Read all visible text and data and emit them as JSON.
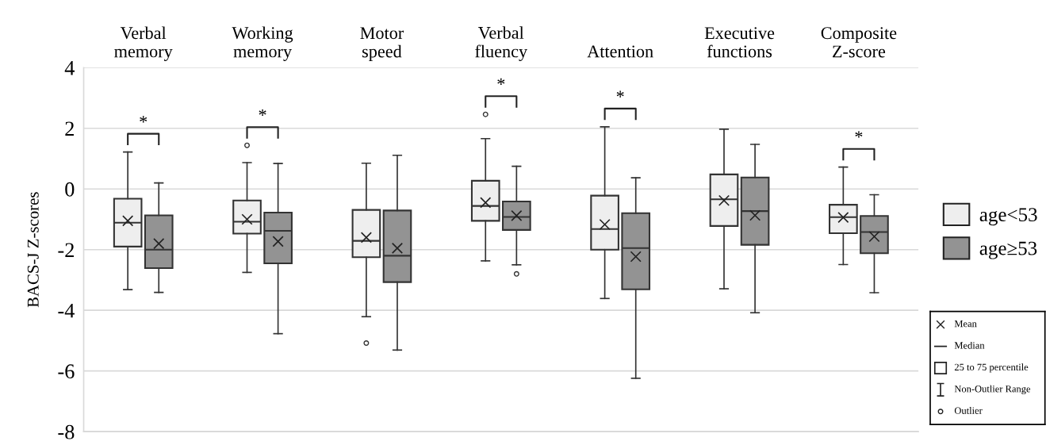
{
  "chart_data": {
    "type": "box",
    "categories": [
      "Verbal memory",
      "Working memory",
      "Motor speed",
      "Verbal fluency",
      "Attention",
      "Executive functions",
      "Composite Z-score"
    ],
    "ylabel": "BACS-J Z-scores",
    "ylim": [
      -8,
      4
    ],
    "yticks": [
      4,
      2,
      0,
      -2,
      -4,
      -6,
      -8
    ],
    "grid": "y",
    "legend": "right",
    "series": [
      {
        "name": "age<53",
        "color": "#eeeeee",
        "boxes": [
          {
            "low": -3.32,
            "q1": -1.9,
            "median": -1.11,
            "q3": -0.32,
            "high": 1.22,
            "mean": -1.05
          },
          {
            "low": -2.75,
            "q1": -1.47,
            "median": -1.08,
            "q3": -0.38,
            "high": 0.87,
            "mean": -1.0,
            "outliers": [
              1.44
            ]
          },
          {
            "low": -4.21,
            "q1": -2.25,
            "median": -1.71,
            "q3": -0.69,
            "high": 0.85,
            "mean": -1.6,
            "outliers": [
              -5.08
            ]
          },
          {
            "low": -2.37,
            "q1": -1.05,
            "median": -0.56,
            "q3": 0.27,
            "high": 1.66,
            "mean": -0.45,
            "outliers": [
              2.46
            ]
          },
          {
            "low": -3.61,
            "q1": -2.0,
            "median": -1.32,
            "q3": -0.22,
            "high": 2.05,
            "mean": -1.17
          },
          {
            "low": -3.29,
            "q1": -1.22,
            "median": -0.34,
            "q3": 0.48,
            "high": 1.97,
            "mean": -0.38
          },
          {
            "low": -2.49,
            "q1": -1.46,
            "median": -0.93,
            "q3": -0.52,
            "high": 0.72,
            "mean": -0.94
          }
        ]
      },
      {
        "name": "age≥53",
        "color": "#939393",
        "boxes": [
          {
            "low": -3.41,
            "q1": -2.61,
            "median": -2.0,
            "q3": -0.87,
            "high": 0.2,
            "mean": -1.8
          },
          {
            "low": -4.77,
            "q1": -2.45,
            "median": -1.38,
            "q3": -0.78,
            "high": 0.84,
            "mean": -1.73
          },
          {
            "low": -5.31,
            "q1": -3.07,
            "median": -2.2,
            "q3": -0.71,
            "high": 1.11,
            "mean": -1.95
          },
          {
            "low": -2.5,
            "q1": -1.35,
            "median": -0.92,
            "q3": -0.41,
            "high": 0.75,
            "mean": -0.88,
            "outliers": [
              -2.8
            ]
          },
          {
            "low": -6.24,
            "q1": -3.31,
            "median": -1.95,
            "q3": -0.8,
            "high": 0.37,
            "mean": -2.23
          },
          {
            "low": -4.08,
            "q1": -1.84,
            "median": -0.73,
            "q3": 0.38,
            "high": 1.47,
            "mean": -0.87
          },
          {
            "low": -3.42,
            "q1": -2.12,
            "median": -1.42,
            "q3": -0.89,
            "high": -0.19,
            "mean": -1.57
          }
        ]
      }
    ],
    "annotations": [
      "*",
      "*",
      "*",
      "*",
      "*",
      "Mean",
      "Median",
      "25 to 75 percentile",
      "Non-Outlier Range",
      "Outlier"
    ]
  }
}
